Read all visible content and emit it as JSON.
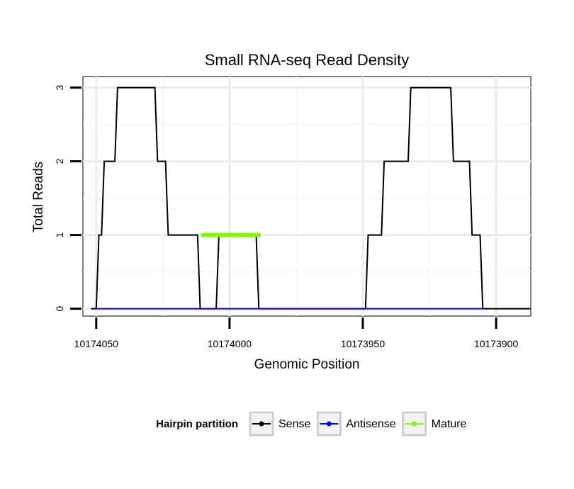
{
  "chart_data": {
    "type": "line",
    "title": "Small RNA-seq Read Density",
    "xlabel": "Genomic Position",
    "ylabel": "Total Reads",
    "xlim": [
      10174055,
      10173887
    ],
    "x_reversed": true,
    "ylim": [
      -0.1,
      3.15
    ],
    "grid": true,
    "x_ticks": [
      10174050,
      10174000,
      10173950,
      10173900
    ],
    "x_tick_labels": [
      "10174050",
      "10174000",
      "10173950",
      "10173900"
    ],
    "y_ticks": [
      0,
      1,
      2,
      3
    ],
    "y_tick_labels": [
      "0",
      "1",
      "2",
      "3"
    ],
    "legend": {
      "title": "Hairpin partition",
      "placement": "bottom",
      "entries": [
        "Sense",
        "Antisense",
        "Mature"
      ]
    },
    "series": [
      {
        "name": "Sense",
        "color": "#000000",
        "x": [
          10174052,
          10174050,
          10174049,
          10174048,
          10174047,
          10174046,
          10174043,
          10174042,
          10174036,
          10174035,
          10174031,
          10174030,
          10174028,
          10174027,
          10174024,
          10174023,
          10174012,
          10174011,
          10174005,
          10174004,
          10173990,
          10173989,
          10173949,
          10173948,
          10173943,
          10173942,
          10173939,
          10173938,
          10173933,
          10173932,
          10173929,
          10173928,
          10173924,
          10173923,
          10173917,
          10173916,
          10173914,
          10173913,
          10173910,
          10173909,
          10173906,
          10173905,
          10173897,
          10173896,
          10173887
        ],
        "y": [
          0,
          0,
          1,
          1,
          2,
          2,
          2,
          3,
          3,
          3,
          3,
          3,
          3,
          2,
          2,
          1,
          1,
          0,
          0,
          1,
          1,
          0,
          0,
          1,
          1,
          2,
          2,
          2,
          2,
          3,
          3,
          3,
          3,
          3,
          3,
          2,
          2,
          2,
          2,
          1,
          1,
          0,
          0,
          0,
          0
        ]
      },
      {
        "name": "Antisense",
        "color": "#0000ff",
        "x": [
          10174050,
          10174023,
          10174011,
          10173989,
          10173948,
          10173905
        ],
        "y": [
          0,
          0,
          0,
          0,
          0,
          0
        ]
      },
      {
        "name": "Mature",
        "color": "#7fff00",
        "x": [
          10174010,
          10173989
        ],
        "y": [
          1,
          1
        ]
      }
    ]
  }
}
